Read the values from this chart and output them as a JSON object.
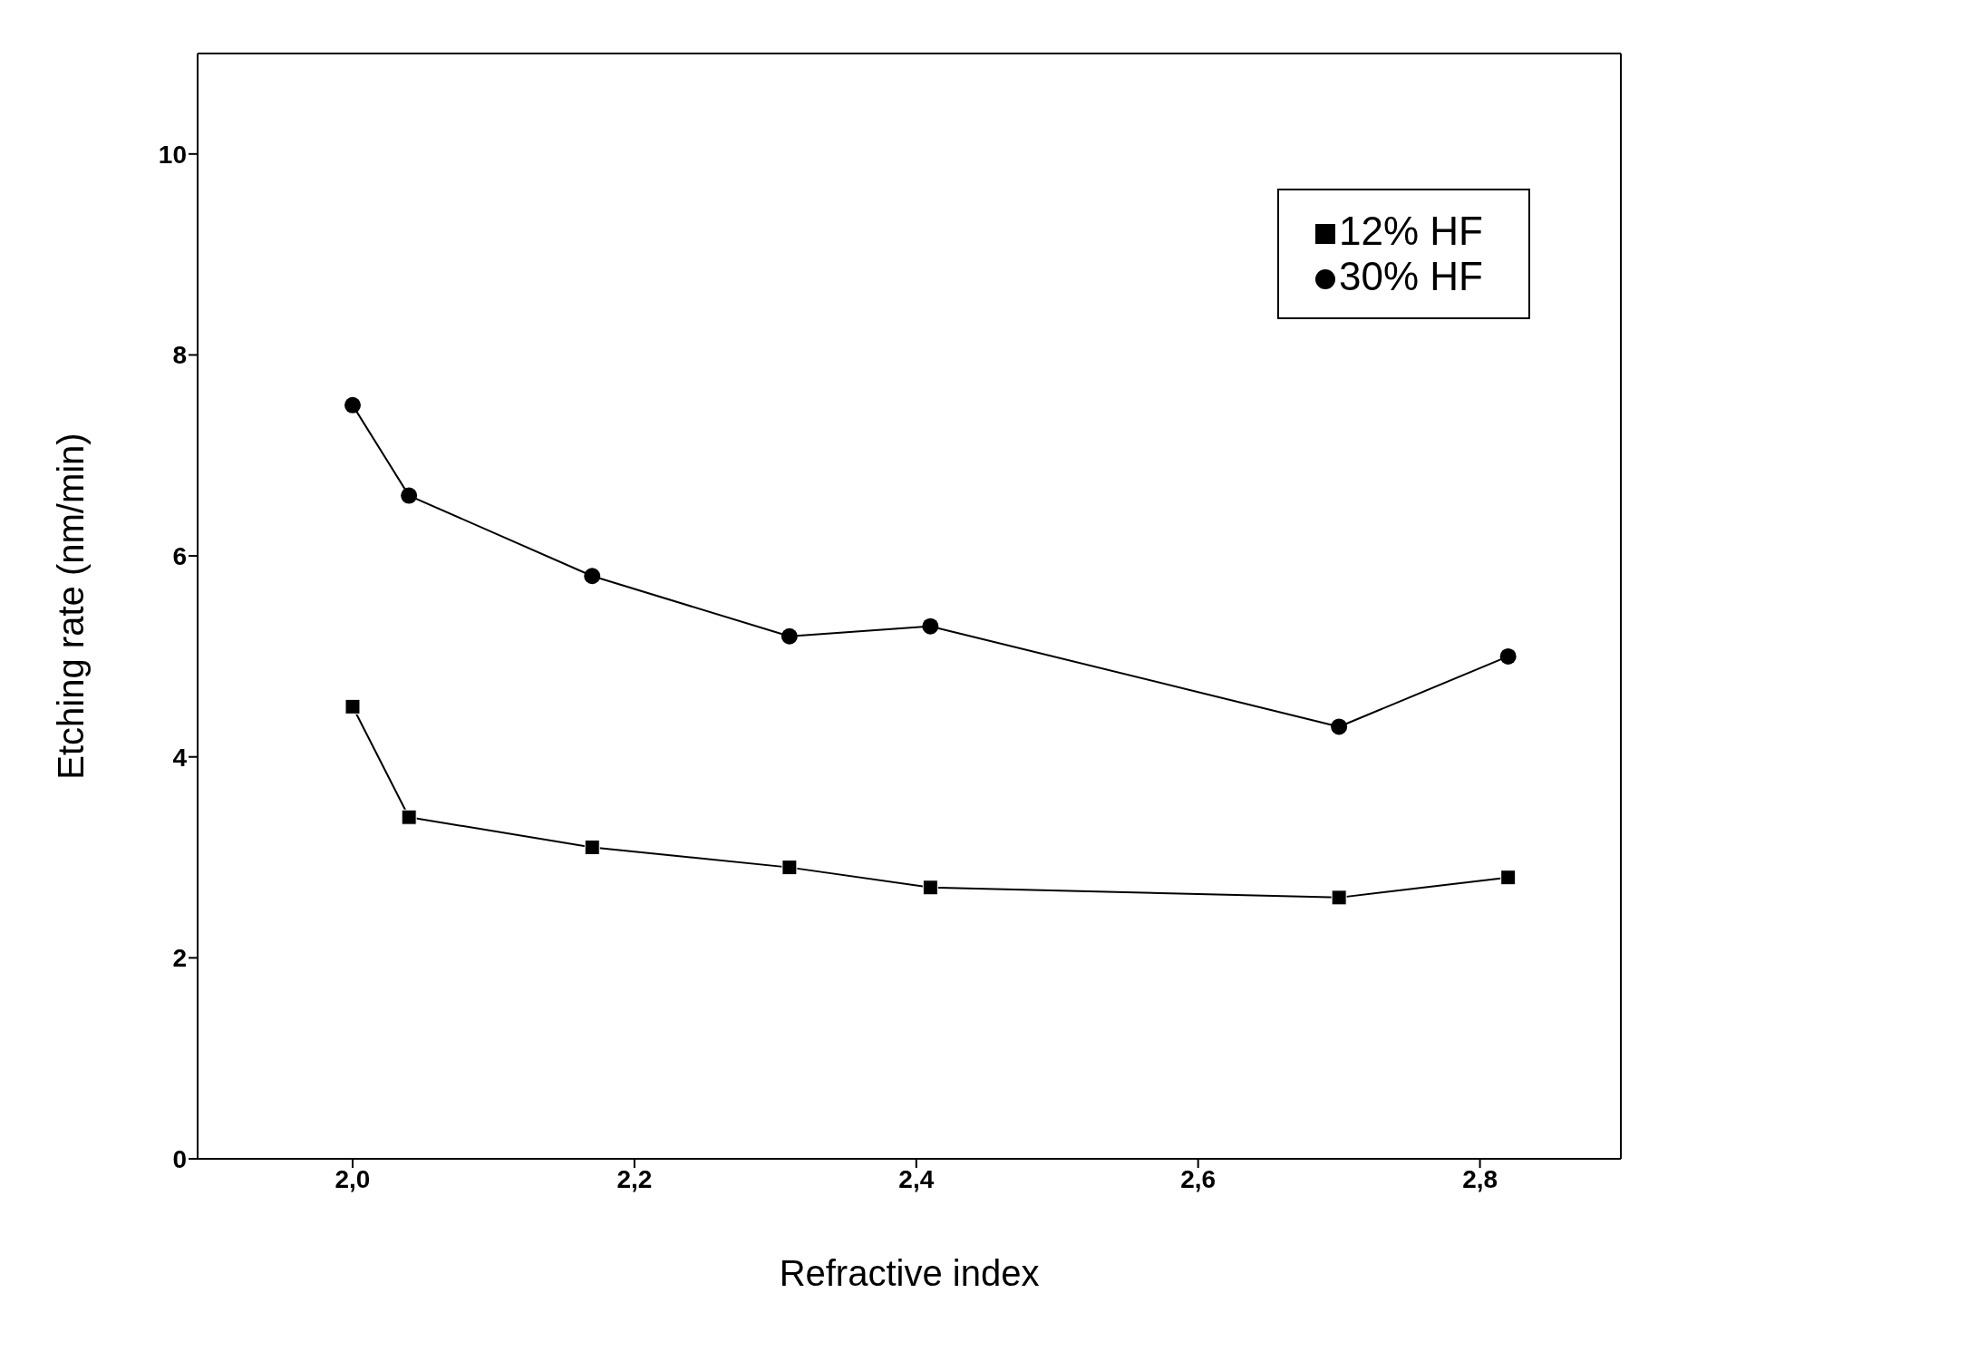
{
  "chart_data": {
    "type": "line",
    "xlabel": "Refractive index",
    "ylabel": "Etching rate (nm/min)",
    "x": [
      2.0,
      2.04,
      2.17,
      2.31,
      2.41,
      2.7,
      2.82
    ],
    "series": [
      {
        "name": "12% HF",
        "color": "#000000",
        "marker": "square",
        "values": [
          4.5,
          3.4,
          3.1,
          2.9,
          2.7,
          2.6,
          2.8
        ]
      },
      {
        "name": "30% HF",
        "color": "#000000",
        "marker": "circle",
        "values": [
          7.5,
          6.6,
          5.8,
          5.2,
          5.3,
          4.3,
          5.0
        ]
      }
    ],
    "xlim": [
      1.89,
      2.9
    ],
    "xticks": [
      {
        "value": 2.0,
        "label": "2,0"
      },
      {
        "value": 2.2,
        "label": "2,2"
      },
      {
        "value": 2.4,
        "label": "2,4"
      },
      {
        "value": 2.6,
        "label": "2,6"
      },
      {
        "value": 2.8,
        "label": "2,8"
      }
    ],
    "ylim": [
      0,
      11
    ],
    "yticks": [
      0,
      2,
      4,
      6,
      8,
      10
    ],
    "legend": "top right",
    "grid": false,
    "line_style": "solid"
  }
}
